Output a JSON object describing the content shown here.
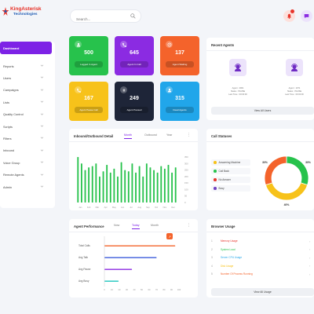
{
  "brand": {
    "name": "KingAsterisk",
    "sub": "Technologies"
  },
  "search": {
    "placeholder": "Search..."
  },
  "sidebar": {
    "items": [
      {
        "label": "Dashboard",
        "active": true
      },
      {
        "label": "Reports"
      },
      {
        "label": "Users"
      },
      {
        "label": "Campaigns"
      },
      {
        "label": "Lists"
      },
      {
        "label": "Quality Control"
      },
      {
        "label": "Scripts"
      },
      {
        "label": "Filters"
      },
      {
        "label": "Inbound"
      },
      {
        "label": "Voice Group"
      },
      {
        "label": "Remote Agents"
      },
      {
        "label": "Admin"
      }
    ]
  },
  "stats": [
    {
      "value": "500",
      "label": "Logged In Agent",
      "color": "#27c24c",
      "icon": "user-icon"
    },
    {
      "value": "645",
      "label": "Agent In Call",
      "color": "#8b2be2",
      "icon": "phone-icon"
    },
    {
      "value": "137",
      "label": "Agent Waiting",
      "color": "#f4632b",
      "icon": "clock-icon"
    },
    {
      "value": "167",
      "label": "Agent Pause Call",
      "color": "#f7c21a",
      "icon": "phone-icon"
    },
    {
      "value": "249",
      "label": "Agent Paused",
      "color": "#1e2538",
      "icon": "pause-icon"
    },
    {
      "value": "315",
      "label": "Dead Agents",
      "color": "#21a6ea",
      "icon": "user-icon"
    }
  ],
  "recent_agents": {
    "title": "Recent Agents",
    "agents": [
      {
        "line1": "Agent : 2001",
        "line2": "Status : PAUSE",
        "line3": "Last Time : 00:00:00"
      },
      {
        "line1": "Agent : 1071",
        "line2": "Status : PAUSE",
        "line3": "Last Time : 00:00:00"
      }
    ],
    "view_label": "View All Users"
  },
  "inbound_chart": {
    "title": "Inbound/Outbound Detail",
    "tabs": [
      {
        "label": "Month",
        "active": true
      },
      {
        "label": "Outbound"
      },
      {
        "label": "Year"
      }
    ],
    "y_ticks": [
      "350",
      "300",
      "250",
      "200",
      "150",
      "100",
      "50",
      "0"
    ],
    "x_ticks": [
      "Jan",
      "Feb",
      "Mar",
      "Apr",
      "May",
      "Jun",
      "Jul",
      "Aug",
      "Sep",
      "Oct",
      "Nov",
      "Dec"
    ]
  },
  "chart_data": {
    "type": "bar",
    "title": "Inbound/Outbound Detail",
    "ylim": [
      0,
      350
    ],
    "values": [
      350,
      300,
      250,
      270,
      280,
      300,
      200,
      240,
      290,
      230,
      260,
      200,
      310,
      250,
      240,
      300,
      230,
      280,
      200,
      300,
      270,
      250,
      230,
      280,
      260,
      290,
      230,
      270
    ]
  },
  "call_statuses": {
    "title": "Call Statuses",
    "legend": [
      {
        "label": "Answering Machine",
        "color": "#f7c21a"
      },
      {
        "label": "Call Back",
        "color": "#27c24c"
      },
      {
        "label": "No Answer",
        "color": "#e8352b"
      },
      {
        "label": "Busy",
        "color": "#6f42c1"
      }
    ],
    "slices": [
      {
        "label": "30%",
        "value": 30,
        "color": "#27c24c"
      },
      {
        "label": "40%",
        "value": 40,
        "color": "#f7c21a"
      },
      {
        "label": "30%",
        "value": 30,
        "color": "#f4632b"
      }
    ]
  },
  "agent_performance": {
    "title": "Agent Performance",
    "tabs": [
      {
        "label": "Now"
      },
      {
        "label": "Today",
        "active": true
      },
      {
        "label": "Month"
      }
    ],
    "rows": [
      {
        "label": "Total Calls",
        "value": 95,
        "color": "#f4632b"
      },
      {
        "label": "Avg Talk",
        "value": 70,
        "color": "#3b5bdb"
      },
      {
        "label": "Avg Pause",
        "value": 37,
        "color": "#8b2be2"
      },
      {
        "label": "Avg Busy",
        "value": 19,
        "color": "#1bc5bd"
      }
    ],
    "x_ticks": [
      "0",
      "10",
      "20",
      "30",
      "40",
      "50",
      "60",
      "70",
      "80",
      "90",
      "100"
    ],
    "badge": "↗"
  },
  "browser_usage": {
    "title": "Browser Usage",
    "rows": [
      {
        "num": "1",
        "label": "Memory Usage",
        "color": "#e8352b"
      },
      {
        "num": "2",
        "label": "System Load",
        "color": "#27c24c"
      },
      {
        "num": "3",
        "label": "Server CPU Usage",
        "color": "#21a6ea"
      },
      {
        "num": "4",
        "label": "Disk Usage",
        "color": "#f7c21a"
      },
      {
        "num": "5",
        "label": "Number Of Process Running",
        "color": "#f4632b"
      }
    ],
    "view_label": "View All Usage"
  }
}
